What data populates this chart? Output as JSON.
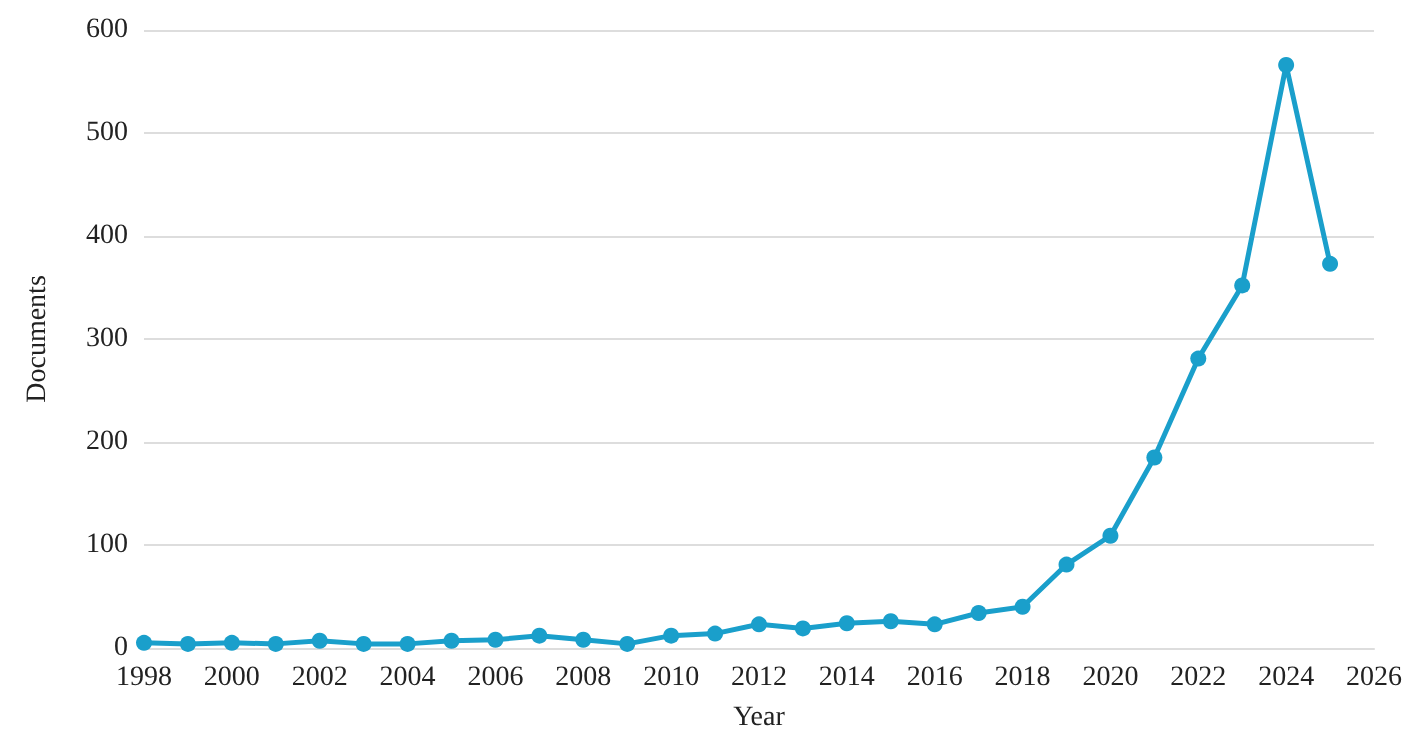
{
  "chart_data": {
    "type": "line",
    "xlabel": "Year",
    "ylabel": "Documents",
    "x": [
      1998,
      1999,
      2000,
      2001,
      2002,
      2003,
      2004,
      2005,
      2006,
      2007,
      2008,
      2009,
      2010,
      2011,
      2012,
      2013,
      2014,
      2015,
      2016,
      2017,
      2018,
      2019,
      2020,
      2021,
      2022,
      2023,
      2024,
      2025
    ],
    "series": [
      {
        "color": "#1a9fcb",
        "values": [
          5,
          4,
          5,
          4,
          7,
          4,
          4,
          7,
          8,
          12,
          8,
          4,
          12,
          14,
          23,
          19,
          24,
          26,
          23,
          34,
          40,
          81,
          109,
          185,
          281,
          352,
          566,
          373
        ]
      }
    ],
    "xlim": [
      1998,
      2026
    ],
    "xticks": [
      1998,
      2000,
      2002,
      2004,
      2006,
      2008,
      2010,
      2012,
      2014,
      2016,
      2018,
      2020,
      2022,
      2024,
      2026
    ],
    "ylim": [
      0,
      600
    ],
    "yticks": [
      0,
      100,
      200,
      300,
      400,
      500,
      600
    ],
    "grid": "y",
    "marker": "circle",
    "line_style": "solid"
  }
}
